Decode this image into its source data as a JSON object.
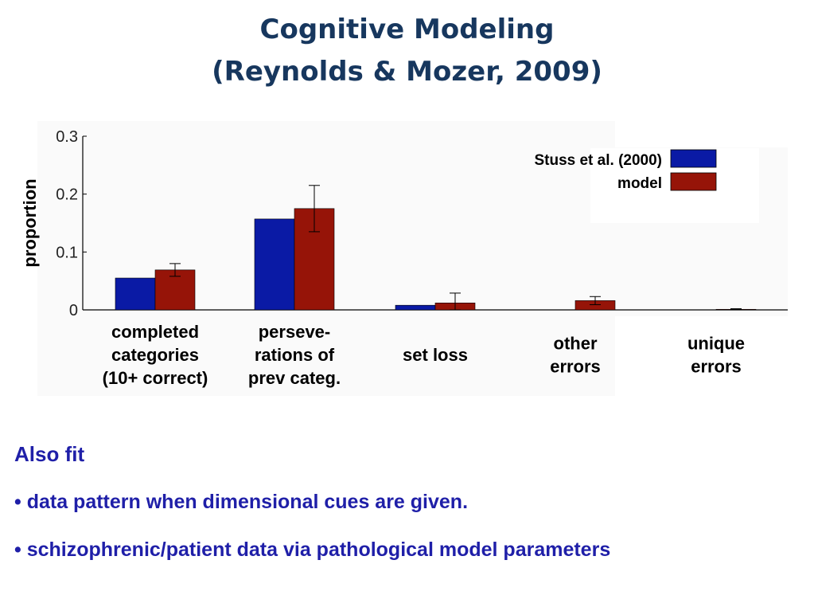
{
  "slide": {
    "title_line1": "Cognitive Modeling",
    "title_line2": "(Reynolds & Mozer, 2009)",
    "notes_heading": "Also fit",
    "bullets": [
      "• data pattern when dimensional cues are given.",
      "• schizophrenic/patient data via pathological model parameters"
    ]
  },
  "chart_data": {
    "type": "bar",
    "title": "",
    "xlabel": "",
    "ylabel": "proportion",
    "ylim": [
      0,
      0.3
    ],
    "yticks": [
      "0",
      "0.1",
      "0.2",
      "0.3"
    ],
    "grid": false,
    "legend_position": "top-right",
    "categories": [
      [
        "completed",
        "categories",
        "(10+ correct)"
      ],
      [
        "perseve-",
        "rations of",
        "prev categ."
      ],
      [
        "set loss"
      ],
      [
        "other",
        "errors"
      ],
      [
        "unique",
        "errors"
      ]
    ],
    "series": [
      {
        "name": "Stuss et al. (2000)",
        "color": "#0a1aa5",
        "values": [
          0.055,
          0.157,
          0.008,
          0.0,
          0.0
        ]
      },
      {
        "name": "model",
        "color": "#961408",
        "values": [
          0.069,
          0.175,
          0.012,
          0.016,
          0.001
        ],
        "error": [
          0.011,
          0.04,
          0.017,
          0.007,
          0.001
        ]
      }
    ]
  }
}
